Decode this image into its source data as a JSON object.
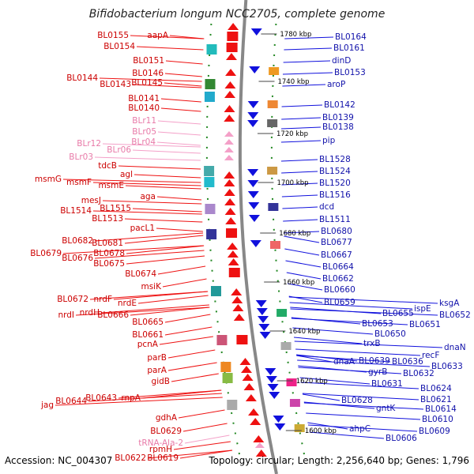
{
  "title": "Bifidobacterium longum NCC2705, complete genome",
  "footer": {
    "accession": "Accession: NC_004307",
    "summary": "Topology: circular; Length: 2,256,640 bp; Genes: 1,796"
  },
  "colors": {
    "forward_gene": "#ee1111",
    "reverse_gene": "#1111dd",
    "rna_gene": "#f4a0c8",
    "backbone": "#888888",
    "tick": "#228822"
  },
  "position_ticks": [
    "1780 kbp",
    "1740 kbp",
    "1720 kbp",
    "1700 kbp",
    "1680 kbp",
    "1660 kbp",
    "1640 kbp",
    "1620 kbp",
    "1600 kbp"
  ],
  "left_labels": [
    "aapA",
    "BL0155",
    "BL0154",
    "BL0151",
    "BL0146",
    "BL0144",
    "BL0143",
    "BL0145",
    "BL0141",
    "BL0140",
    "BLr11",
    "BLr05",
    "BLr04",
    "BLr12",
    "BLr06",
    "BLr03",
    "tdcB",
    "agl",
    "msmG",
    "msmF",
    "msmE",
    "aga",
    "mesJ",
    "BL1514",
    "BL1515",
    "BL1513",
    "pacL1",
    "BL0682",
    "BL0681",
    "BL0679",
    "BL0678",
    "BL0676",
    "BL0675",
    "BL0674",
    "msiK",
    "BL0672",
    "nrdF",
    "nrdE",
    "nrdI",
    "nrdH",
    "BL0666",
    "BL0665",
    "BL0661",
    "pcnA",
    "parB",
    "parA",
    "gidB",
    "BL0643",
    "rnpA",
    "jag",
    "BL0644",
    "gdhA",
    "BL0629",
    "tRNA-Ala-2",
    "rpmH",
    "BL0622",
    "BL0619"
  ],
  "right_labels": [
    "BL0164",
    "BL0161",
    "dinD",
    "BL0153",
    "aroP",
    "BL0142",
    "BL0139",
    "BL0138",
    "pip",
    "BL1528",
    "BL1524",
    "BL1520",
    "BL1516",
    "dcd",
    "BL1511",
    "BL0680",
    "BL0677",
    "BL0667",
    "BL0664",
    "BL0662",
    "BL0660",
    "BL0659",
    "ispE",
    "ksgA",
    "BL0655",
    "BL0652",
    "BL0653",
    "BL0651",
    "BL0650",
    "trxB",
    "recF",
    "dnaN",
    "dnaA",
    "BL0639",
    "BL0636",
    "BL0633",
    "gyrB",
    "BL0632",
    "BL0631",
    "BL0624",
    "BL0628",
    "BL0621",
    "gntK",
    "BL0614",
    "BL0610",
    "ahpC",
    "BL0609",
    "BL0606"
  ]
}
